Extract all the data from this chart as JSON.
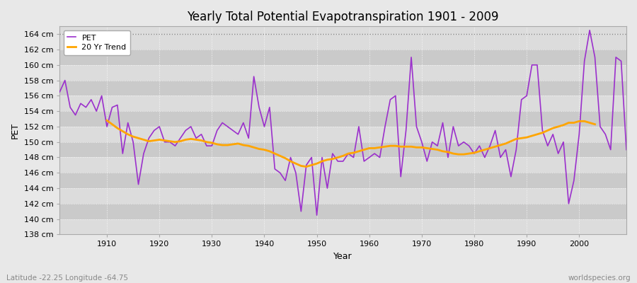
{
  "title": "Yearly Total Potential Evapotranspiration 1901 - 2009",
  "xlabel": "Year",
  "ylabel": "PET",
  "footer_left": "Latitude -22.25 Longitude -64.75",
  "footer_right": "worldspecies.org",
  "pet_color": "#9B30CC",
  "trend_color": "#FFA500",
  "fig_bg": "#E8E8E8",
  "plot_bg_light": "#DCDCDC",
  "plot_bg_dark": "#CACACA",
  "ylim_min": 138,
  "ylim_max": 165,
  "xlim_min": 1901,
  "xlim_max": 2009,
  "years": [
    1901,
    1902,
    1903,
    1904,
    1905,
    1906,
    1907,
    1908,
    1909,
    1910,
    1911,
    1912,
    1913,
    1914,
    1915,
    1916,
    1917,
    1918,
    1919,
    1920,
    1921,
    1922,
    1923,
    1924,
    1925,
    1926,
    1927,
    1928,
    1929,
    1930,
    1931,
    1932,
    1933,
    1934,
    1935,
    1936,
    1937,
    1938,
    1939,
    1940,
    1941,
    1942,
    1943,
    1944,
    1945,
    1946,
    1947,
    1948,
    1949,
    1950,
    1951,
    1952,
    1953,
    1954,
    1955,
    1956,
    1957,
    1958,
    1959,
    1960,
    1961,
    1962,
    1963,
    1964,
    1965,
    1966,
    1967,
    1968,
    1969,
    1970,
    1971,
    1972,
    1973,
    1974,
    1975,
    1976,
    1977,
    1978,
    1979,
    1980,
    1981,
    1982,
    1983,
    1984,
    1985,
    1986,
    1987,
    1988,
    1989,
    1990,
    1991,
    1992,
    1993,
    1994,
    1995,
    1996,
    1997,
    1998,
    1999,
    2000,
    2001,
    2002,
    2003,
    2004,
    2005,
    2006,
    2007,
    2008,
    2009
  ],
  "pet": [
    156.5,
    158.0,
    154.5,
    153.5,
    155.0,
    154.5,
    155.5,
    154.0,
    156.0,
    152.0,
    154.5,
    154.8,
    148.5,
    152.5,
    150.0,
    144.5,
    148.5,
    150.5,
    151.5,
    152.0,
    150.0,
    150.0,
    149.5,
    150.5,
    151.5,
    152.0,
    150.5,
    151.0,
    149.5,
    149.5,
    151.5,
    152.5,
    152.0,
    151.5,
    151.0,
    152.5,
    150.5,
    158.5,
    154.5,
    152.0,
    154.5,
    146.5,
    146.0,
    145.0,
    148.0,
    146.0,
    141.0,
    147.0,
    148.0,
    140.5,
    148.0,
    144.0,
    148.5,
    147.5,
    147.5,
    148.5,
    148.0,
    152.0,
    147.5,
    148.0,
    148.5,
    148.0,
    152.0,
    155.5,
    156.0,
    145.5,
    151.5,
    161.0,
    152.0,
    150.0,
    147.5,
    150.0,
    149.5,
    152.5,
    148.0,
    152.0,
    149.5,
    150.0,
    149.5,
    148.5,
    149.5,
    148.0,
    149.5,
    151.5,
    148.0,
    149.0,
    145.5,
    149.0,
    155.5,
    156.0,
    160.0,
    160.0,
    151.5,
    149.5,
    151.0,
    148.5,
    150.0,
    142.0,
    145.0,
    151.0,
    160.5,
    164.5,
    161.0,
    152.0,
    151.0,
    149.0,
    161.0,
    160.5,
    149.0
  ],
  "trend_years": [
    1910,
    1911,
    1912,
    1913,
    1914,
    1915,
    1916,
    1917,
    1918,
    1919,
    1920,
    1921,
    1922,
    1923,
    1924,
    1925,
    1926,
    1927,
    1928,
    1929,
    1930,
    1931,
    1932,
    1933,
    1934,
    1935,
    1936,
    1937,
    1938,
    1939,
    1940,
    1941,
    1942,
    1943,
    1944,
    1945,
    1946,
    1947,
    1948,
    1949,
    1950,
    1951,
    1952,
    1953,
    1954,
    1955,
    1956,
    1957,
    1958,
    1959,
    1960,
    1961,
    1962,
    1963,
    1964,
    1965,
    1966,
    1967,
    1968,
    1969,
    1970,
    1971,
    1972,
    1973,
    1974,
    1975,
    1976,
    1977,
    1978,
    1979,
    1980,
    1981,
    1982,
    1983,
    1984,
    1985,
    1986,
    1987,
    1988,
    1989,
    1990,
    1991,
    1992,
    1993,
    1994,
    1995,
    1996,
    1997,
    1998,
    1999,
    2000,
    2001,
    2002,
    2003
  ],
  "trend": [
    152.8,
    152.3,
    151.8,
    151.4,
    151.0,
    150.7,
    150.5,
    150.3,
    150.1,
    150.2,
    150.3,
    150.2,
    150.1,
    150.0,
    150.1,
    150.3,
    150.4,
    150.3,
    150.2,
    150.0,
    149.9,
    149.7,
    149.6,
    149.6,
    149.7,
    149.8,
    149.6,
    149.5,
    149.3,
    149.1,
    149.0,
    148.8,
    148.5,
    148.2,
    147.9,
    147.5,
    147.2,
    146.9,
    146.8,
    147.0,
    147.2,
    147.5,
    147.7,
    147.8,
    148.0,
    148.2,
    148.5,
    148.6,
    148.8,
    149.0,
    149.2,
    149.2,
    149.3,
    149.4,
    149.5,
    149.5,
    149.4,
    149.4,
    149.4,
    149.3,
    149.3,
    149.2,
    149.1,
    149.0,
    148.8,
    148.7,
    148.5,
    148.4,
    148.4,
    148.5,
    148.6,
    148.8,
    149.0,
    149.2,
    149.4,
    149.6,
    149.8,
    150.1,
    150.4,
    150.5,
    150.6,
    150.8,
    151.0,
    151.2,
    151.5,
    151.8,
    152.0,
    152.2,
    152.5,
    152.5,
    152.7,
    152.7,
    152.5,
    152.3
  ]
}
